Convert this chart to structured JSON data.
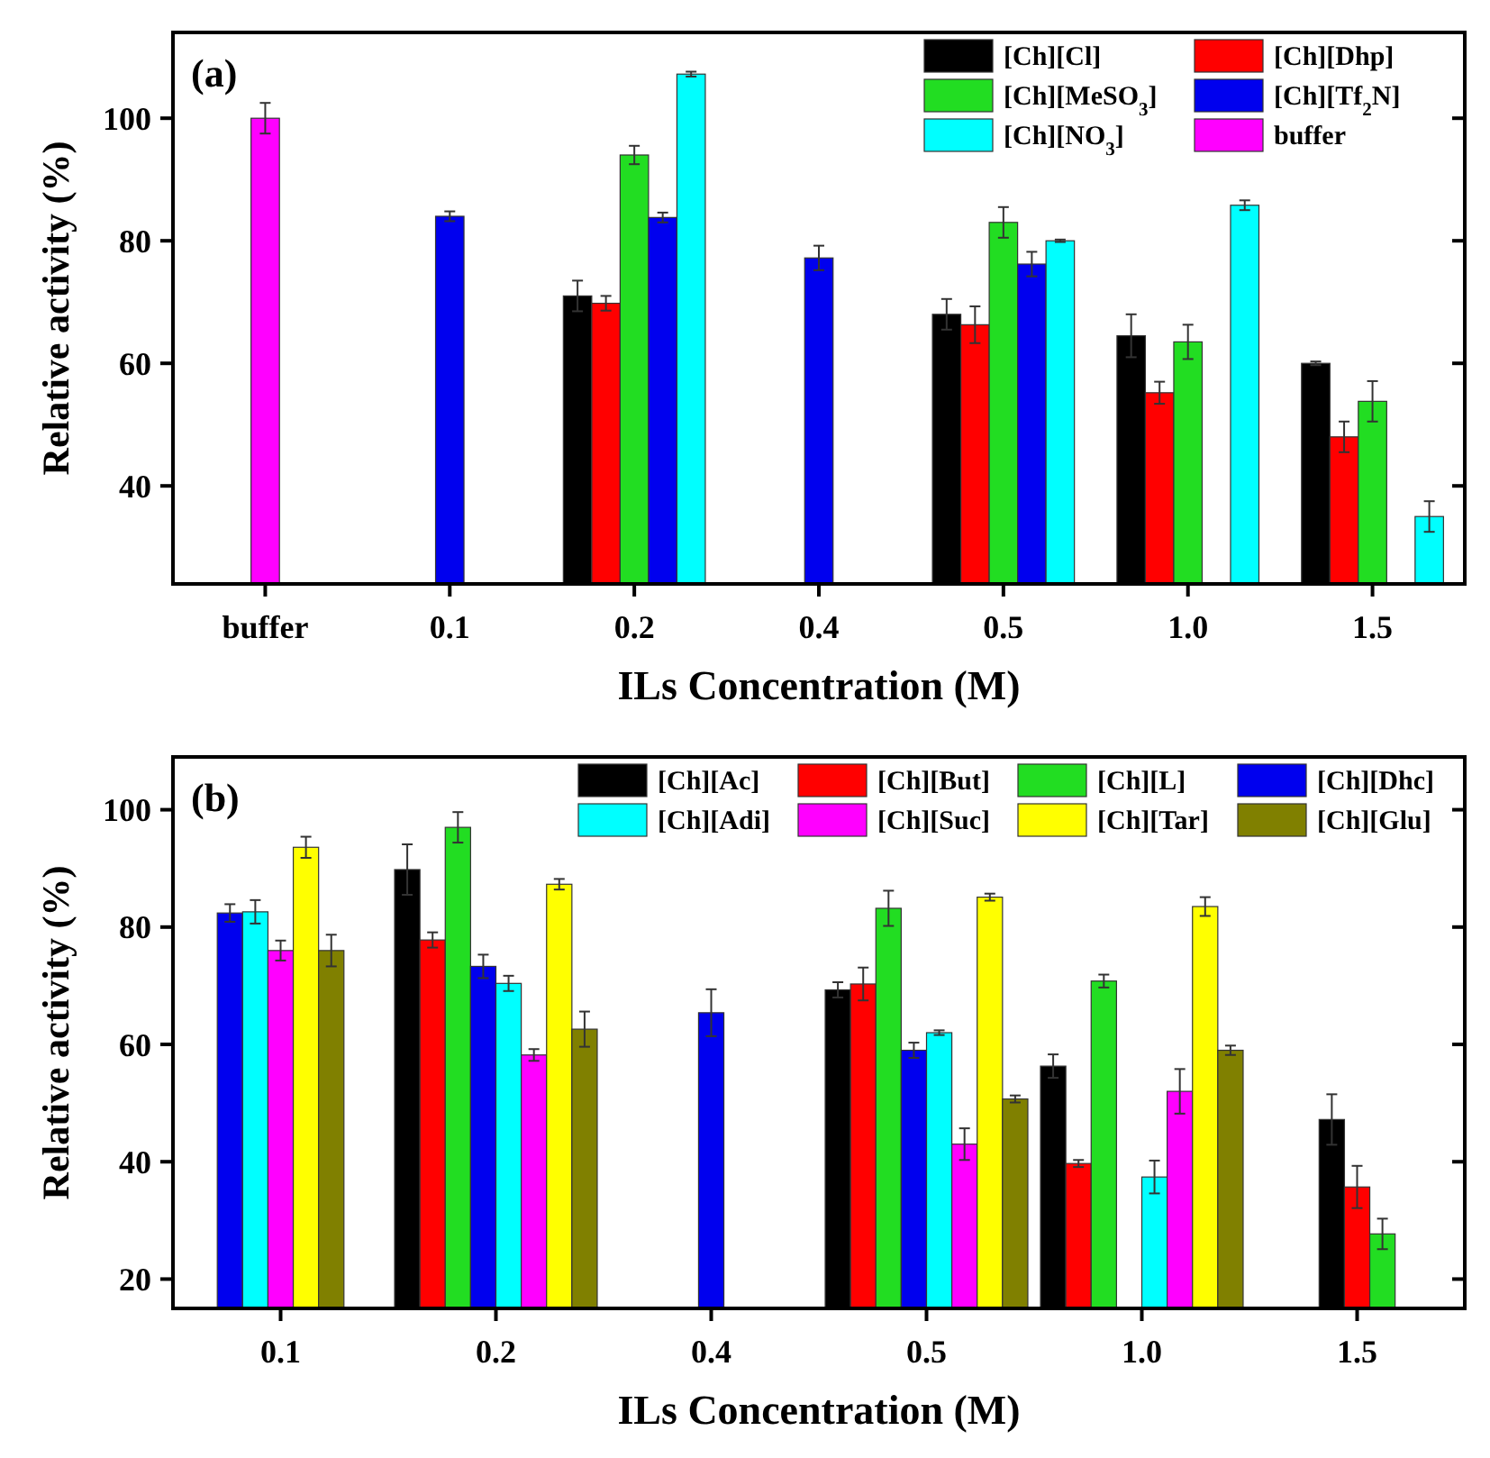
{
  "chart_data": [
    {
      "type": "bar",
      "xlabel": "ILs Concentration (M)",
      "ylabel": "Relative activity (%)",
      "categories": [
        "buffer",
        "0.1",
        "0.2",
        "0.4",
        "0.5",
        "1.0",
        "1.5"
      ],
      "ylim": [
        24,
        114
      ],
      "yticks": [
        40,
        60,
        80,
        100
      ],
      "legend": "top right",
      "annotations": [
        "(a)"
      ],
      "series": [
        {
          "name": "[Ch][Cl]",
          "color": "#000000",
          "values": [
            null,
            null,
            71,
            null,
            68,
            64.5,
            60
          ],
          "errors": [
            null,
            null,
            2.5,
            null,
            2.5,
            3.5,
            0.3
          ]
        },
        {
          "name": "[Ch][Dhp]",
          "color": "#ff0000",
          "values": [
            null,
            null,
            69.8,
            null,
            66.3,
            55.2,
            48
          ],
          "errors": [
            null,
            null,
            1.2,
            null,
            3,
            1.8,
            2.5
          ]
        },
        {
          "name": "[Ch][MeSO$_{3}$]",
          "color": "#22dd22",
          "values": [
            null,
            null,
            94,
            null,
            83,
            63.5,
            53.8
          ],
          "errors": [
            null,
            null,
            1.5,
            null,
            2.5,
            2.8,
            3.3
          ]
        },
        {
          "name": "[Ch][Tf$_{2}$N]",
          "color": "#0000ee",
          "values": [
            null,
            84,
            83.8,
            77.2,
            76.2,
            null,
            null
          ],
          "errors": [
            null,
            0.8,
            0.8,
            2,
            2,
            null,
            null
          ]
        },
        {
          "name": "[Ch][NO$_{3}$]",
          "color": "#00ffff",
          "values": [
            null,
            null,
            107.2,
            null,
            80,
            85.8,
            35
          ],
          "errors": [
            null,
            null,
            0.4,
            null,
            0.2,
            0.8,
            2.5
          ]
        },
        {
          "name": "buffer",
          "color": "#ff00ff",
          "values": [
            100,
            null,
            null,
            null,
            null,
            null,
            null
          ],
          "errors": [
            2.5,
            null,
            null,
            null,
            null,
            null,
            null
          ]
        }
      ]
    },
    {
      "type": "bar",
      "xlabel": "ILs Concentration (M)",
      "ylabel": "Relative activity (%)",
      "categories": [
        "0.1",
        "0.2",
        "0.4",
        "0.5",
        "1.0",
        "1.5"
      ],
      "ylim": [
        15,
        109
      ],
      "yticks": [
        20,
        40,
        60,
        80,
        100
      ],
      "legend": "top",
      "annotations": [
        "(b)"
      ],
      "series": [
        {
          "name": "[Ch][Ac]",
          "color": "#000000",
          "values": [
            null,
            89.8,
            null,
            69.3,
            56.3,
            47.2
          ],
          "errors": [
            null,
            4.3,
            null,
            1.3,
            2,
            4.3
          ]
        },
        {
          "name": "[Ch][But]",
          "color": "#ff0000",
          "values": [
            null,
            77.8,
            null,
            70.3,
            39.7,
            35.7
          ],
          "errors": [
            null,
            1.3,
            null,
            2.8,
            0.6,
            3.6
          ]
        },
        {
          "name": "[Ch][L]",
          "color": "#22dd22",
          "values": [
            null,
            97,
            null,
            83.2,
            70.8,
            27.7
          ],
          "errors": [
            null,
            2.6,
            null,
            3,
            1.1,
            2.6
          ]
        },
        {
          "name": "[Ch][Dhc]",
          "color": "#0000ee",
          "values": [
            82.4,
            73.3,
            65.4,
            59,
            null,
            null
          ],
          "errors": [
            1.5,
            2,
            4,
            1.3,
            null,
            null
          ]
        },
        {
          "name": "[Ch][Adi]",
          "color": "#00ffff",
          "values": [
            82.6,
            70.4,
            null,
            62,
            37.4,
            null
          ],
          "errors": [
            2,
            1.3,
            null,
            0.4,
            2.8,
            null
          ]
        },
        {
          "name": "[Ch][Suc]",
          "color": "#ff00ff",
          "values": [
            76,
            58.2,
            null,
            43,
            52,
            null
          ],
          "errors": [
            1.7,
            1,
            null,
            2.7,
            3.8,
            null
          ]
        },
        {
          "name": "[Ch][Tar]",
          "color": "#ffff00",
          "values": [
            93.6,
            87.3,
            null,
            85.1,
            83.5,
            null
          ],
          "errors": [
            1.8,
            0.9,
            null,
            0.6,
            1.6,
            null
          ]
        },
        {
          "name": "[Ch][Glu]",
          "color": "#808000",
          "values": [
            76,
            62.6,
            null,
            50.7,
            59,
            null
          ],
          "errors": [
            2.7,
            3,
            null,
            0.6,
            0.8,
            null
          ]
        }
      ]
    }
  ]
}
